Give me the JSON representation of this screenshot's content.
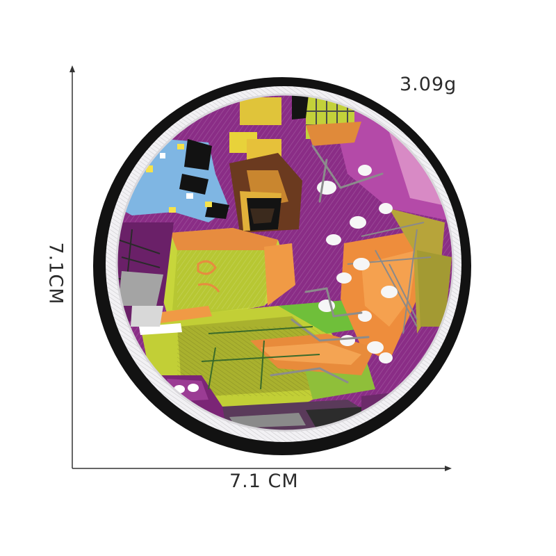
{
  "product": {
    "weight_label": "3.09g",
    "width_label": "7.1  CM",
    "height_label": "7.1CM"
  },
  "colors": {
    "border_black": "#111111",
    "border_white": "#f4f4f6",
    "purple": "#8e2f8a",
    "sky_blue": "#7fb7e6",
    "lime": "#c8d43a",
    "orange": "#ec8a3c",
    "olive": "#a8a52e",
    "dark_brown": "#3d2418",
    "yellow": "#e8d23a",
    "gray": "#9a9a9a",
    "pink": "#d78bc6"
  },
  "icons": {
    "axis": "dimension-arrows",
    "patch": "embroidered-round-patch"
  }
}
